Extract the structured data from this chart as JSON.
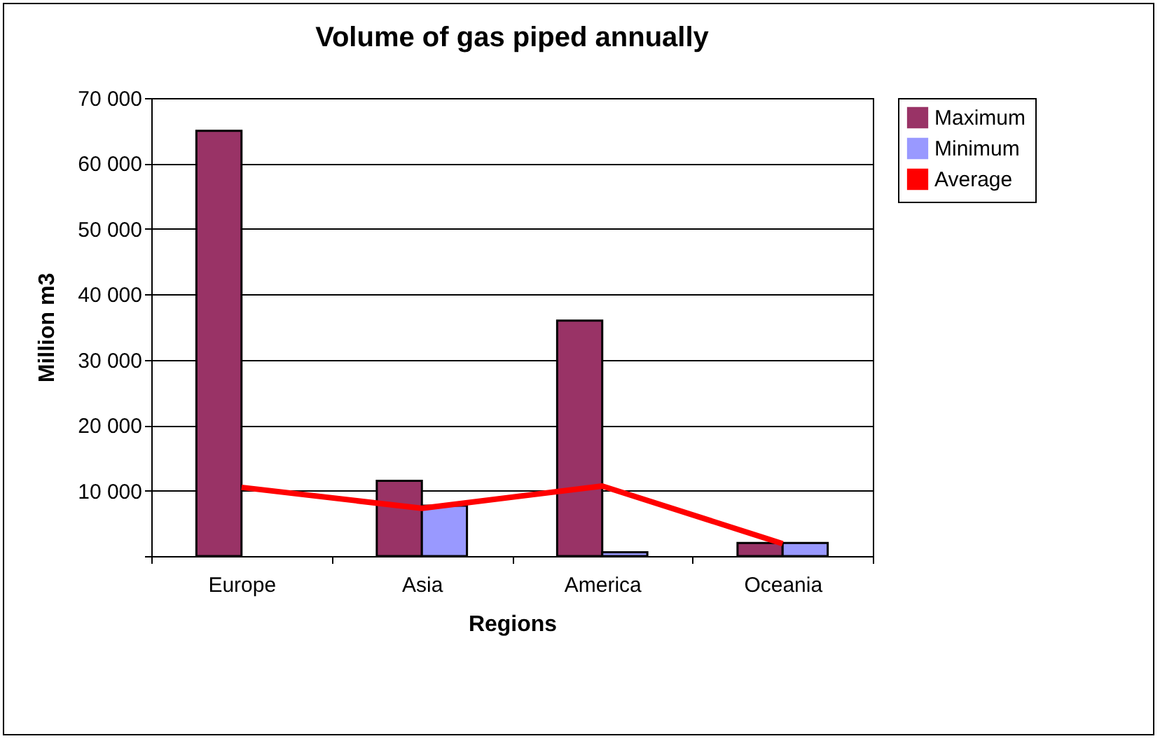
{
  "chart_data": {
    "type": "bar",
    "title": "Volume of gas piped annually",
    "xlabel": "Regions",
    "ylabel": "Million m3",
    "categories": [
      "Europe",
      "Asia",
      "America",
      "Oceania"
    ],
    "series": [
      {
        "name": "Maximum",
        "color": "#993366",
        "values": [
          65000,
          11500,
          36000,
          2000
        ]
      },
      {
        "name": "Minimum",
        "color": "#9999ff",
        "values": [
          null,
          7700,
          600,
          2000
        ]
      },
      {
        "name": "Average",
        "color": "#ff0000",
        "type": "line",
        "values": [
          10500,
          7300,
          10700,
          1900
        ]
      }
    ],
    "ylim": [
      0,
      70000
    ],
    "yticks": [
      {
        "value": 0,
        "label": null
      },
      {
        "value": 10000,
        "label": "10 000"
      },
      {
        "value": 20000,
        "label": "20 000"
      },
      {
        "value": 30000,
        "label": "30 000"
      },
      {
        "value": 40000,
        "label": "40 000"
      },
      {
        "value": 50000,
        "label": "50 000"
      },
      {
        "value": 60000,
        "label": "60 000"
      },
      {
        "value": 70000,
        "label": "70 000"
      }
    ],
    "grid": "y",
    "legend": "right",
    "marker": "none",
    "line_style": "solid"
  }
}
